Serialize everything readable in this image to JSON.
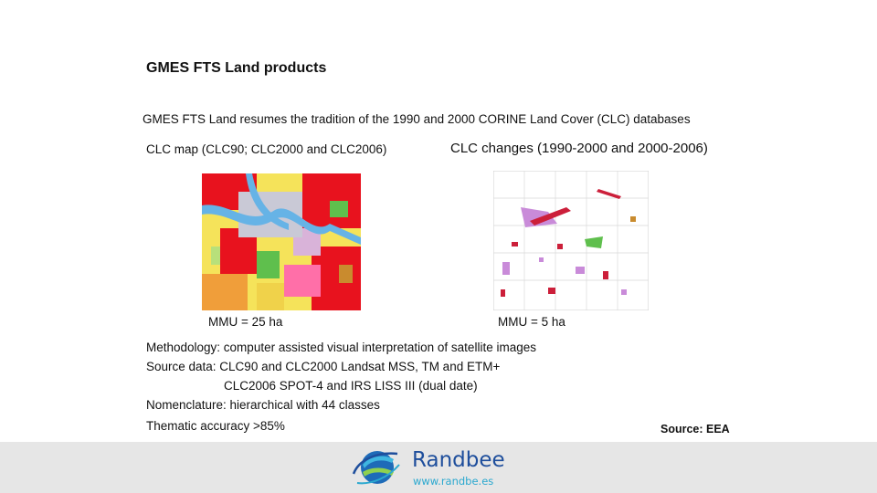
{
  "slide": {
    "title": "GMES FTS Land products",
    "subtitle": "GMES FTS Land  resumes the tradition of the 1990 and 2000 CORINE Land Cover (CLC) databases",
    "left_label": "CLC map (CLC90; CLC2000 and CLC2006)",
    "right_label": "CLC changes (1990-2000 and 2000-2006)",
    "left_mmu": "MMU = 25 ha",
    "right_mmu": "MMU = 5 ha",
    "methodology": "Methodology: computer assisted visual interpretation of satellite images",
    "source_data_1": "Source data: CLC90 and CLC2000 Landsat MSS, TM and ETM+",
    "source_data_2": "CLC2006 SPOT-4 and IRS LISS III (dual date)",
    "nomenclature": "Nomenclature: hierarchical  with 44 classes",
    "accuracy": "Thematic accuracy >85%",
    "source": "Source: EEA"
  },
  "footer": {
    "brand": "Randbee",
    "url": "www.randbe.es"
  },
  "colors": {
    "footer_bg": "#e6e6e6",
    "brand_blue": "#1e4e9c",
    "url_cyan": "#2aa8cf",
    "urban_red": "#e8121e",
    "water_blue": "#66b3e6",
    "agri_yellow": "#f5e35a"
  },
  "icons": {
    "logo": "randbee-globe-logo"
  }
}
